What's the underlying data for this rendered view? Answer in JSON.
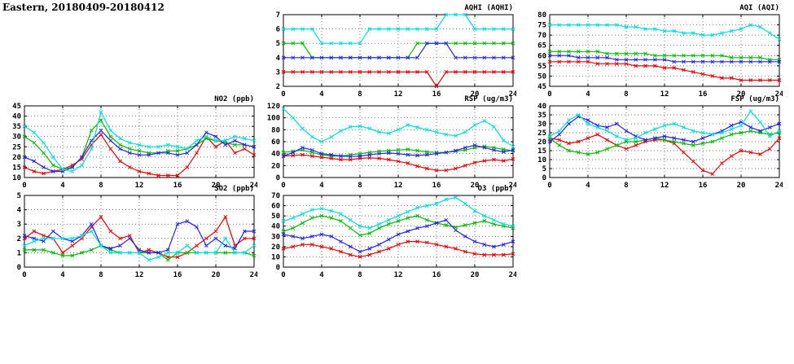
{
  "page_title": "Eastern, 20180409-20180412",
  "x_hours": [
    0,
    1,
    2,
    3,
    4,
    5,
    6,
    7,
    8,
    9,
    10,
    11,
    12,
    13,
    14,
    15,
    16,
    17,
    18,
    19,
    20,
    21,
    22,
    23,
    24
  ],
  "series_colors": {
    "red": "#ee0000",
    "green": "#00bb00",
    "blue": "#2222ee",
    "cyan": "#00dddd"
  },
  "chart_data": [
    {
      "id": "aqhi",
      "type": "line",
      "title": "AQHI (AQHI)",
      "xlabel": "",
      "ylabel": "",
      "grid": true,
      "marker": "x",
      "xlim": [
        0,
        24
      ],
      "xticks": [
        0,
        4,
        8,
        12,
        16,
        20,
        24
      ],
      "ylim": [
        2,
        7
      ],
      "yticks": [
        2,
        3,
        4,
        5,
        6,
        7
      ],
      "series": [
        {
          "name": "red",
          "color": "#ee0000",
          "values": [
            3,
            3,
            3,
            3,
            3,
            3,
            3,
            3,
            3,
            3,
            3,
            3,
            3,
            3,
            3,
            3,
            2,
            3,
            3,
            3,
            3,
            3,
            3,
            3,
            3
          ]
        },
        {
          "name": "green",
          "color": "#00bb00",
          "values": [
            5,
            5,
            5,
            4,
            4,
            4,
            4,
            4,
            4,
            4,
            4,
            4,
            4,
            4,
            5,
            5,
            5,
            5,
            5,
            5,
            5,
            5,
            5,
            5,
            5
          ]
        },
        {
          "name": "blue",
          "color": "#2222ee",
          "values": [
            4,
            4,
            4,
            4,
            4,
            4,
            4,
            4,
            4,
            4,
            4,
            4,
            4,
            4,
            4,
            5,
            5,
            5,
            4,
            4,
            4,
            4,
            4,
            4,
            4
          ]
        },
        {
          "name": "cyan",
          "color": "#00dddd",
          "values": [
            6,
            6,
            6,
            6,
            5,
            5,
            5,
            5,
            5,
            6,
            6,
            6,
            6,
            6,
            6,
            6,
            6,
            7,
            7,
            7,
            6,
            6,
            6,
            6,
            6
          ]
        }
      ]
    },
    {
      "id": "aqi",
      "type": "line",
      "title": "AQI (AQI)",
      "xlabel": "",
      "ylabel": "",
      "grid": true,
      "marker": "x",
      "xlim": [
        0,
        24
      ],
      "xticks": [
        0,
        4,
        8,
        12,
        16,
        20,
        24
      ],
      "ylim": [
        45,
        80
      ],
      "yticks": [
        45,
        50,
        55,
        60,
        65,
        70,
        75,
        80
      ],
      "series": [
        {
          "name": "red",
          "color": "#ee0000",
          "values": [
            57,
            57,
            57,
            57,
            57,
            56,
            56,
            56,
            56,
            55,
            55,
            55,
            54,
            54,
            53,
            52,
            51,
            50,
            49,
            49,
            48,
            48,
            48,
            48,
            48
          ]
        },
        {
          "name": "green",
          "color": "#00bb00",
          "values": [
            62,
            62,
            62,
            62,
            62,
            62,
            61,
            61,
            61,
            61,
            61,
            60,
            60,
            60,
            60,
            60,
            60,
            60,
            60,
            59,
            59,
            59,
            59,
            58,
            58
          ]
        },
        {
          "name": "blue",
          "color": "#2222ee",
          "values": [
            60,
            60,
            60,
            59,
            59,
            59,
            59,
            58,
            58,
            58,
            58,
            58,
            58,
            57,
            57,
            57,
            57,
            57,
            57,
            57,
            57,
            57,
            57,
            57,
            57
          ]
        },
        {
          "name": "cyan",
          "color": "#00dddd",
          "values": [
            75,
            75,
            75,
            75,
            75,
            75,
            75,
            75,
            74,
            74,
            73,
            73,
            72,
            72,
            71,
            71,
            70,
            70,
            71,
            72,
            73,
            75,
            74,
            71,
            68
          ]
        }
      ]
    },
    {
      "id": "no2",
      "type": "line",
      "title": "NO2 (ppb)",
      "xlabel": "",
      "ylabel": "",
      "grid": true,
      "marker": "x",
      "xlim": [
        0,
        24
      ],
      "xticks": [
        0,
        4,
        8,
        12,
        16,
        20,
        24
      ],
      "ylim": [
        10,
        45
      ],
      "yticks": [
        10,
        15,
        20,
        25,
        30,
        35,
        40,
        45
      ],
      "series": [
        {
          "name": "red",
          "color": "#ee0000",
          "values": [
            15,
            13,
            12,
            13,
            14,
            16,
            19,
            26,
            31,
            24,
            18,
            15,
            13,
            12,
            11,
            11,
            11,
            15,
            22,
            30,
            25,
            28,
            22,
            24,
            21
          ]
        },
        {
          "name": "green",
          "color": "#00bb00",
          "values": [
            30,
            27,
            22,
            16,
            14,
            15,
            20,
            33,
            38,
            30,
            26,
            24,
            23,
            22,
            22,
            23,
            23,
            24,
            26,
            29,
            28,
            27,
            26,
            26,
            25
          ]
        },
        {
          "name": "blue",
          "color": "#2222ee",
          "values": [
            20,
            18,
            15,
            13,
            13,
            15,
            20,
            28,
            33,
            28,
            24,
            22,
            21,
            21,
            22,
            22,
            21,
            22,
            26,
            32,
            30,
            26,
            28,
            26,
            25
          ]
        },
        {
          "name": "cyan",
          "color": "#00dddd",
          "values": [
            35,
            32,
            27,
            20,
            14,
            13,
            16,
            24,
            42,
            33,
            29,
            27,
            26,
            25,
            25,
            26,
            25,
            24,
            28,
            30,
            28,
            28,
            30,
            29,
            28
          ]
        }
      ]
    },
    {
      "id": "rsp",
      "type": "line",
      "title": "RSP (ug/m3)",
      "xlabel": "",
      "ylabel": "",
      "grid": true,
      "marker": "x",
      "xlim": [
        0,
        24
      ],
      "xticks": [
        0,
        4,
        8,
        12,
        16,
        20,
        24
      ],
      "ylim": [
        0,
        120
      ],
      "yticks": [
        0,
        20,
        40,
        60,
        80,
        100,
        120
      ],
      "series": [
        {
          "name": "red",
          "color": "#ee0000",
          "values": [
            36,
            37,
            38,
            36,
            34,
            32,
            30,
            30,
            32,
            33,
            32,
            30,
            27,
            24,
            19,
            15,
            12,
            12,
            15,
            20,
            25,
            28,
            30,
            28,
            31
          ]
        },
        {
          "name": "green",
          "color": "#00bb00",
          "values": [
            42,
            44,
            46,
            42,
            38,
            36,
            36,
            38,
            40,
            42,
            44,
            45,
            46,
            47,
            45,
            43,
            42,
            42,
            44,
            46,
            50,
            52,
            50,
            47,
            45
          ]
        },
        {
          "name": "blue",
          "color": "#2222ee",
          "values": [
            36,
            42,
            50,
            46,
            40,
            38,
            36,
            35,
            36,
            38,
            40,
            41,
            40,
            38,
            37,
            38,
            40,
            42,
            45,
            50,
            54,
            50,
            46,
            43,
            46
          ]
        },
        {
          "name": "cyan",
          "color": "#00dddd",
          "values": [
            115,
            100,
            82,
            68,
            60,
            68,
            78,
            85,
            86,
            82,
            76,
            74,
            80,
            88,
            84,
            80,
            76,
            72,
            70,
            76,
            88,
            95,
            85,
            62,
            52
          ]
        }
      ]
    },
    {
      "id": "fsp",
      "type": "line",
      "title": "FSP (ug/m3)",
      "xlabel": "",
      "ylabel": "",
      "grid": true,
      "marker": "x",
      "xlim": [
        0,
        24
      ],
      "xticks": [
        0,
        4,
        8,
        12,
        16,
        20,
        24
      ],
      "ylim": [
        0,
        40
      ],
      "yticks": [
        0,
        5,
        10,
        15,
        20,
        25,
        30,
        35,
        40
      ],
      "series": [
        {
          "name": "red",
          "color": "#ee0000",
          "values": [
            22,
            21,
            19,
            20,
            22,
            24,
            21,
            18,
            16,
            18,
            20,
            21,
            21,
            19,
            14,
            9,
            4,
            2,
            8,
            12,
            15,
            14,
            13,
            16,
            22
          ]
        },
        {
          "name": "green",
          "color": "#00bb00",
          "values": [
            22,
            18,
            15,
            14,
            13,
            14,
            16,
            18,
            20,
            20,
            21,
            22,
            21,
            20,
            19,
            18,
            19,
            20,
            22,
            24,
            25,
            26,
            25,
            24,
            25
          ]
        },
        {
          "name": "blue",
          "color": "#2222ee",
          "values": [
            20,
            24,
            30,
            34,
            32,
            29,
            28,
            30,
            26,
            23,
            21,
            22,
            23,
            22,
            21,
            20,
            22,
            24,
            26,
            29,
            31,
            28,
            26,
            28,
            30
          ]
        },
        {
          "name": "cyan",
          "color": "#00dddd",
          "values": [
            23,
            26,
            32,
            35,
            30,
            28,
            26,
            23,
            21,
            22,
            25,
            27,
            29,
            30,
            28,
            26,
            25,
            24,
            25,
            27,
            29,
            37,
            31,
            23,
            26
          ]
        }
      ]
    },
    {
      "id": "so2",
      "type": "line",
      "title": "SO2 (ppb)",
      "xlabel": "",
      "ylabel": "",
      "grid": true,
      "marker": "x",
      "xlim": [
        0,
        24
      ],
      "xticks": [
        0,
        4,
        8,
        12,
        16,
        20,
        24
      ],
      "ylim": [
        0,
        5
      ],
      "yticks": [
        0,
        1,
        2,
        3,
        4,
        5
      ],
      "series": [
        {
          "name": "red",
          "color": "#ee0000",
          "values": [
            2,
            2.5,
            2.2,
            2,
            1,
            1.5,
            2,
            2.8,
            3.5,
            2.5,
            2,
            2.2,
            1,
            1.2,
            1,
            0.7,
            0.7,
            1,
            1.5,
            2,
            2.5,
            3.5,
            1.5,
            2,
            2
          ]
        },
        {
          "name": "green",
          "color": "#00bb00",
          "values": [
            1.2,
            1.2,
            1.2,
            1,
            0.8,
            0.8,
            1,
            1.2,
            1.5,
            1.2,
            1,
            1,
            1,
            1,
            1,
            0.5,
            1,
            1,
            1,
            1,
            1,
            1,
            1,
            1,
            0.8
          ]
        },
        {
          "name": "blue",
          "color": "#2222ee",
          "values": [
            2.2,
            2,
            1.8,
            2.5,
            2,
            1.8,
            2.2,
            3,
            1.5,
            1.3,
            1.5,
            2,
            1.2,
            1,
            1,
            1.2,
            3,
            3.2,
            2.8,
            1.5,
            2,
            1.5,
            1.3,
            2.5,
            2.5
          ]
        },
        {
          "name": "cyan",
          "color": "#00dddd",
          "values": [
            1.5,
            1.8,
            2,
            2,
            2,
            2,
            2.2,
            2.5,
            1.5,
            1,
            1,
            1,
            1,
            0.5,
            0.7,
            1,
            1,
            1.5,
            1,
            1,
            1,
            2,
            1,
            1,
            1.5
          ]
        }
      ]
    },
    {
      "id": "o3",
      "type": "line",
      "title": "O3 (ppb)",
      "xlabel": "",
      "ylabel": "",
      "grid": true,
      "marker": "x",
      "xlim": [
        0,
        24
      ],
      "xticks": [
        0,
        4,
        8,
        12,
        16,
        20,
        24
      ],
      "ylim": [
        0,
        70
      ],
      "yticks": [
        0,
        10,
        20,
        30,
        40,
        50,
        60,
        70
      ],
      "series": [
        {
          "name": "red",
          "color": "#ee0000",
          "values": [
            18,
            20,
            22,
            22,
            20,
            18,
            15,
            12,
            10,
            12,
            15,
            18,
            22,
            25,
            25,
            24,
            22,
            20,
            18,
            15,
            13,
            12,
            12,
            12,
            13
          ]
        },
        {
          "name": "green",
          "color": "#00bb00",
          "values": [
            35,
            38,
            43,
            48,
            50,
            48,
            45,
            38,
            31,
            33,
            38,
            42,
            45,
            48,
            50,
            46,
            43,
            41,
            39,
            41,
            43,
            45,
            42,
            40,
            38
          ]
        },
        {
          "name": "blue",
          "color": "#2222ee",
          "values": [
            32,
            30,
            28,
            30,
            32,
            30,
            25,
            20,
            15,
            18,
            22,
            27,
            32,
            35,
            38,
            40,
            43,
            46,
            36,
            30,
            25,
            22,
            20,
            22,
            25
          ]
        },
        {
          "name": "cyan",
          "color": "#00dddd",
          "values": [
            45,
            48,
            52,
            56,
            57,
            55,
            52,
            46,
            40,
            38,
            42,
            46,
            50,
            54,
            58,
            60,
            62,
            66,
            68,
            62,
            55,
            50,
            46,
            42,
            40
          ]
        }
      ]
    }
  ]
}
